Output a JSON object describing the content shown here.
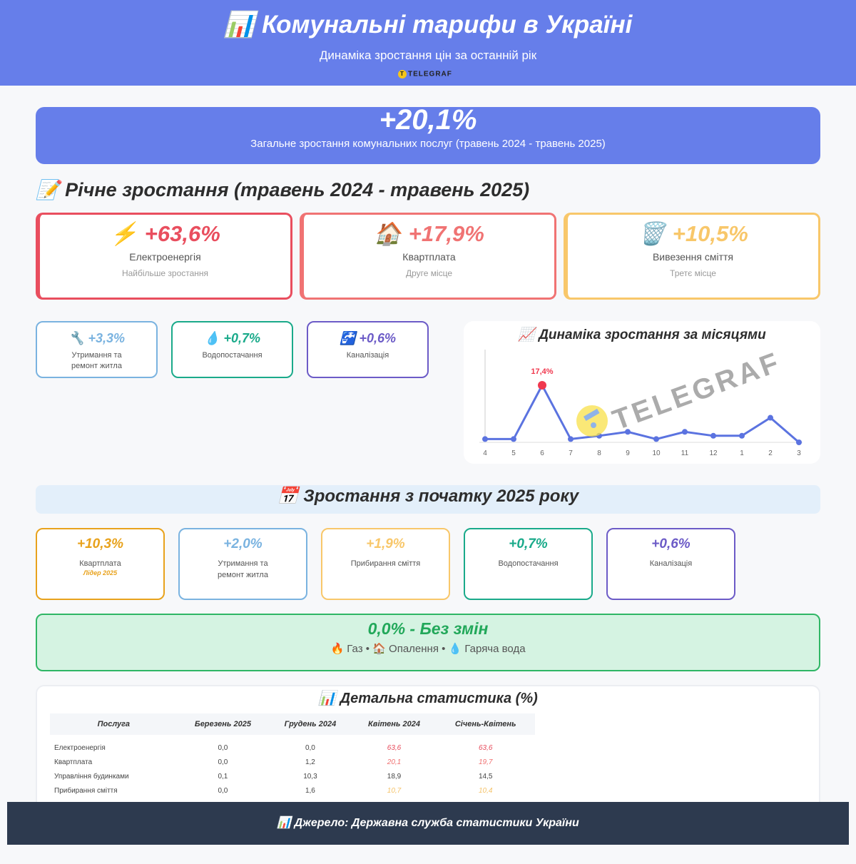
{
  "header": {
    "icon": "bar-chart-icon",
    "title": "📊 Комунальні тарифи в Україні",
    "subtitle": "Динаміка зростання цін за останній рік",
    "brand": "TELEGRAF"
  },
  "total": {
    "value": "+20,1%",
    "label": "Загальне зростання комунальних послуг (травень 2024 - травень 2025)"
  },
  "annual": {
    "title": "📝 Річне зростання (травень 2024 - травень 2025)",
    "top": [
      {
        "icon": "⚡",
        "value": "+63,6%",
        "name": "Електроенергія",
        "sub": "Найбільше зростання",
        "color": "#e94e5e"
      },
      {
        "icon": "🏠",
        "value": "+17,9%",
        "name": "Квартплата",
        "sub": "Друге місце",
        "color": "#f07373"
      },
      {
        "icon": "🗑️",
        "value": "+10,5%",
        "name": "Вивезення сміття",
        "sub": "Третє місце",
        "color": "#f8c76a"
      }
    ],
    "others": [
      {
        "icon": "🔧",
        "value": "+3,3%",
        "name": "Утримання та ремонт житла",
        "color": "#7ab3e0"
      },
      {
        "icon": "💧",
        "value": "+0,7%",
        "name": "Водопостачання",
        "color": "#1aaa8a"
      },
      {
        "icon": "🚰",
        "value": "+0,6%",
        "name": "Каналізація",
        "color": "#6c5bc7"
      }
    ]
  },
  "chart_data": {
    "type": "line",
    "title": "📈 Динаміка зростання за місяцями",
    "categories": [
      "4",
      "5",
      "6",
      "7",
      "8",
      "9",
      "10",
      "11",
      "12",
      "1",
      "2",
      "3"
    ],
    "values": [
      1.0,
      1.0,
      17.4,
      1.0,
      2.0,
      3.2,
      1.0,
      3.2,
      2.0,
      2.0,
      7.5,
      0.0
    ],
    "highlight": {
      "index": 2,
      "label": "17,4%",
      "color": "#f0384e"
    },
    "line_color": "#5b73e0",
    "grid": false
  },
  "y2025": {
    "title": "📅 Зростання з початку 2025 року",
    "cards": [
      {
        "value": "+10,3%",
        "name": "Квартплата",
        "sub": "Лідер 2025",
        "color": "#e8a21c"
      },
      {
        "value": "+2,0%",
        "name": "Утримання та ремонт житла",
        "color": "#7ab3e0"
      },
      {
        "value": "+1,9%",
        "name": "Прибирання сміття",
        "color": "#f8c76a"
      },
      {
        "value": "+0,7%",
        "name": "Водопостачання",
        "color": "#1aaa8a"
      },
      {
        "value": "+0,6%",
        "name": "Каналізація",
        "color": "#6c5bc7"
      }
    ]
  },
  "nochange": {
    "value": "0,0% - Без змін",
    "items": "🔥 Газ • 🏠 Опалення • 💧 Гаряча вода"
  },
  "stats": {
    "title": "📊 Детальна статистика (%)",
    "headers": [
      "Послуга",
      "Березень 2025",
      "Грудень 2024",
      "Квітень 2024",
      "Січень-Квітень"
    ],
    "rows": [
      [
        "Електроенергія",
        "0,0",
        "0,0",
        "63,6",
        "63,6"
      ],
      [
        "Квартплата",
        "0,0",
        "1,2",
        "20,1",
        "19,7"
      ],
      [
        "Управління будинками",
        "0,1",
        "10,3",
        "18,9",
        "14,5"
      ],
      [
        "Прибирання сміття",
        "0,0",
        "1,6",
        "10,7",
        "10,4"
      ]
    ]
  },
  "footer": "📊 Джерело: Державна служба статистики України",
  "watermark": "TELEGRAF"
}
